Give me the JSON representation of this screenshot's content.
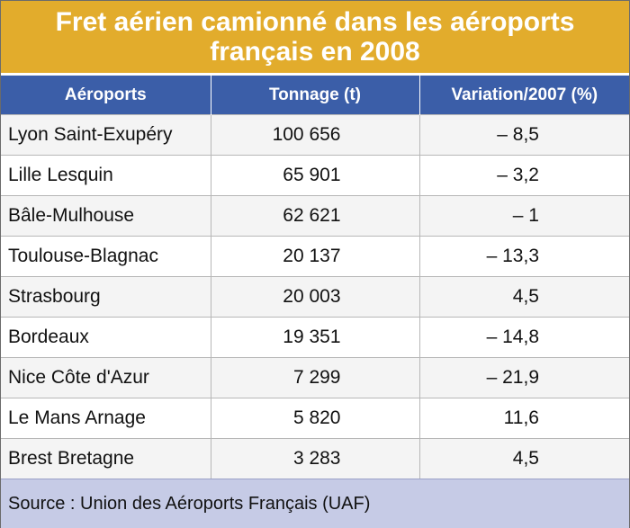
{
  "title": "Fret aérien camionné dans les aéroports français en 2008",
  "colors": {
    "title_band": "#e2ac2c",
    "header_band": "#3b5ea8",
    "source_band": "#c6cbe6"
  },
  "columns": [
    "Aéroports",
    "Tonnage (t)",
    "Variation/2007 (%)"
  ],
  "rows": [
    {
      "airport": "Lyon Saint-Exupéry",
      "tonnage": "100 656",
      "variation": "– 8,5"
    },
    {
      "airport": "Lille Lesquin",
      "tonnage": "65 901",
      "variation": "– 3,2"
    },
    {
      "airport": "Bâle-Mulhouse",
      "tonnage": "62 621",
      "variation": "– 1"
    },
    {
      "airport": "Toulouse-Blagnac",
      "tonnage": "20 137",
      "variation": "– 13,3"
    },
    {
      "airport": "Strasbourg",
      "tonnage": "20 003",
      "variation": "4,5"
    },
    {
      "airport": "Bordeaux",
      "tonnage": "19 351",
      "variation": "– 14,8"
    },
    {
      "airport": "Nice Côte d'Azur",
      "tonnage": "7 299",
      "variation": "– 21,9"
    },
    {
      "airport": "Le Mans Arnage",
      "tonnage": "5 820",
      "variation": "11,6"
    },
    {
      "airport": "Brest Bretagne",
      "tonnage": "3 283",
      "variation": "4,5"
    }
  ],
  "source": "Source : Union des Aéroports Français (UAF)",
  "chart_data": {
    "type": "table",
    "title": "Fret aérien camionné dans les aéroports français en 2008",
    "columns": [
      "Aéroports",
      "Tonnage (t)",
      "Variation/2007 (%)"
    ],
    "categories": [
      "Lyon Saint-Exupéry",
      "Lille Lesquin",
      "Bâle-Mulhouse",
      "Toulouse-Blagnac",
      "Strasbourg",
      "Bordeaux",
      "Nice Côte d'Azur",
      "Le Mans Arnage",
      "Brest Bretagne"
    ],
    "series": [
      {
        "name": "Tonnage (t)",
        "values": [
          100656,
          65901,
          62621,
          20137,
          20003,
          19351,
          7299,
          5820,
          3283
        ]
      },
      {
        "name": "Variation/2007 (%)",
        "values": [
          -8.5,
          -3.2,
          -1,
          -13.3,
          4.5,
          -14.8,
          -21.9,
          11.6,
          4.5
        ]
      }
    ]
  }
}
